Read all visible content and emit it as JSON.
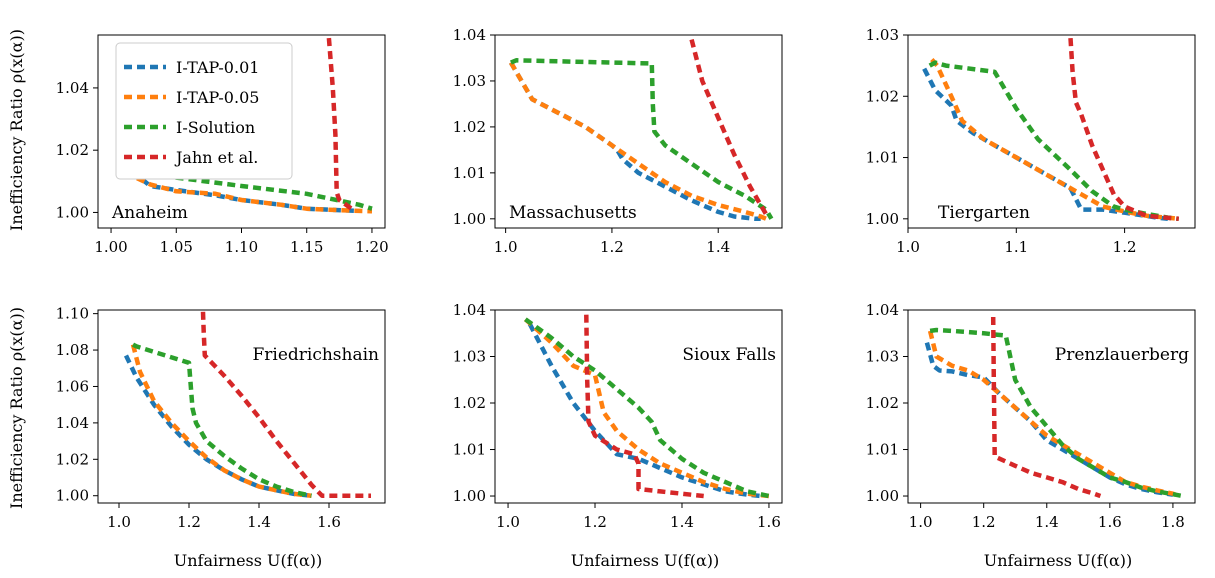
{
  "series_names": [
    "I-TAP-0.01",
    "I-TAP-0.05",
    "I-Solution",
    "Jahn et al."
  ],
  "colors": {
    "I-TAP-0.01": "#1f77b4",
    "I-TAP-0.05": "#ff7f0e",
    "I-Solution": "#2ca02c",
    "Jahn et al.": "#d62728"
  },
  "xlabel": "Unfairness U(f(α))",
  "ylabel": "Inefficiency Ratio ρ(x(α))",
  "chart_data": [
    {
      "type": "line",
      "title": "Anaheim",
      "title_pos": "bottom-left",
      "legend": "upper-left",
      "xlim": [
        0.99,
        1.21
      ],
      "ylim": [
        0.995,
        1.057
      ],
      "xticks": [
        1.0,
        1.05,
        1.1,
        1.15,
        1.2
      ],
      "xtick_labels": [
        "1.00",
        "1.05",
        "1.10",
        "1.15",
        "1.20"
      ],
      "yticks": [
        1.0,
        1.02,
        1.04
      ],
      "ytick_labels": [
        "1.00",
        "1.02",
        "1.04"
      ],
      "series": [
        {
          "name": "I-TAP-0.01",
          "x": [
            1.005,
            1.02,
            1.03,
            1.05,
            1.08,
            1.1,
            1.13,
            1.15,
            1.17,
            1.19
          ],
          "y": [
            1.0125,
            1.012,
            1.0085,
            1.0072,
            1.0055,
            1.004,
            1.0025,
            1.0012,
            1.0008,
            1.0005
          ]
        },
        {
          "name": "I-TAP-0.05",
          "x": [
            1.02,
            1.03,
            1.05,
            1.08,
            1.1,
            1.13,
            1.15,
            1.17,
            1.19,
            1.2
          ],
          "y": [
            1.011,
            1.009,
            1.0068,
            1.006,
            1.004,
            1.0025,
            1.0012,
            1.0008,
            1.0005,
            1.0004
          ]
        },
        {
          "name": "I-Solution",
          "x": [
            1.02,
            1.03,
            1.05,
            1.1,
            1.15,
            1.19,
            1.2
          ],
          "y": [
            1.012,
            1.0125,
            1.0112,
            1.0085,
            1.006,
            1.0025,
            1.0012
          ]
        },
        {
          "name": "Jahn et al.",
          "x": [
            1.167,
            1.17,
            1.172,
            1.173,
            1.175,
            1.185
          ],
          "y": [
            1.056,
            1.04,
            1.025,
            1.0065,
            1.004,
            1.001
          ]
        }
      ]
    },
    {
      "type": "line",
      "title": "Massachusetts",
      "title_pos": "bottom-left",
      "xlim": [
        0.98,
        1.52
      ],
      "ylim": [
        0.998,
        1.04
      ],
      "xticks": [
        1.0,
        1.2,
        1.4
      ],
      "xtick_labels": [
        "1.0",
        "1.2",
        "1.4"
      ],
      "yticks": [
        1.0,
        1.01,
        1.02,
        1.03,
        1.04
      ],
      "ytick_labels": [
        "1.00",
        "1.01",
        "1.02",
        "1.03",
        "1.04"
      ],
      "series": [
        {
          "name": "I-TAP-0.01",
          "x": [
            1.01,
            1.05,
            1.1,
            1.15,
            1.2,
            1.21,
            1.22,
            1.25,
            1.3,
            1.35,
            1.4,
            1.43,
            1.47,
            1.48
          ],
          "y": [
            1.034,
            1.026,
            1.023,
            1.02,
            1.016,
            1.015,
            1.013,
            1.01,
            1.007,
            1.004,
            1.0015,
            1.0005,
            1.0,
            1.0
          ]
        },
        {
          "name": "I-TAP-0.05",
          "x": [
            1.01,
            1.05,
            1.1,
            1.15,
            1.2,
            1.25,
            1.3,
            1.35,
            1.4,
            1.45,
            1.48,
            1.49
          ],
          "y": [
            1.034,
            1.026,
            1.023,
            1.02,
            1.016,
            1.012,
            1.008,
            1.005,
            1.003,
            1.0015,
            1.0005,
            1.0
          ]
        },
        {
          "name": "I-Solution",
          "x": [
            1.01,
            1.02,
            1.275,
            1.277,
            1.28,
            1.3,
            1.35,
            1.4,
            1.45,
            1.49,
            1.5
          ],
          "y": [
            1.034,
            1.0345,
            1.0338,
            1.025,
            1.019,
            1.016,
            1.012,
            1.008,
            1.005,
            1.002,
            1.0
          ]
        },
        {
          "name": "Jahn et al.",
          "x": [
            1.35,
            1.37,
            1.4,
            1.43,
            1.46,
            1.48,
            1.49
          ],
          "y": [
            1.039,
            1.03,
            1.022,
            1.014,
            1.007,
            1.003,
            1.001
          ]
        }
      ]
    },
    {
      "type": "line",
      "title": "Tiergarten",
      "title_pos": "bottom-left",
      "xlim": [
        1.0,
        1.265
      ],
      "ylim": [
        0.9985,
        1.03
      ],
      "xticks": [
        1.0,
        1.1,
        1.2
      ],
      "xtick_labels": [
        "1.0",
        "1.1",
        "1.2"
      ],
      "yticks": [
        1.0,
        1.01,
        1.02,
        1.03
      ],
      "ytick_labels": [
        "1.00",
        "1.01",
        "1.02",
        "1.03"
      ],
      "series": [
        {
          "name": "I-TAP-0.01",
          "x": [
            1.015,
            1.025,
            1.04,
            1.045,
            1.06,
            1.08,
            1.1,
            1.12,
            1.14,
            1.15,
            1.16,
            1.18,
            1.2,
            1.23,
            1.24
          ],
          "y": [
            1.0245,
            1.021,
            1.0185,
            1.016,
            1.014,
            1.012,
            1.01,
            1.008,
            1.006,
            1.005,
            1.0015,
            1.0015,
            1.001,
            1.0002,
            1.0
          ]
        },
        {
          "name": "I-TAP-0.05",
          "x": [
            1.022,
            1.027,
            1.04,
            1.05,
            1.07,
            1.1,
            1.13,
            1.16,
            1.18,
            1.2,
            1.22,
            1.25
          ],
          "y": [
            1.026,
            1.025,
            1.02,
            1.016,
            1.013,
            1.01,
            1.007,
            1.004,
            1.002,
            1.0012,
            1.0005,
            1.0
          ]
        },
        {
          "name": "I-Solution",
          "x": [
            1.02,
            1.025,
            1.035,
            1.08,
            1.1,
            1.12,
            1.15,
            1.17,
            1.19,
            1.2,
            1.22,
            1.24,
            1.25
          ],
          "y": [
            1.025,
            1.0255,
            1.025,
            1.024,
            1.018,
            1.013,
            1.008,
            1.0045,
            1.002,
            1.0015,
            1.0008,
            1.0002,
            1.0
          ]
        },
        {
          "name": "Jahn et al.",
          "x": [
            1.15,
            1.152,
            1.155,
            1.16,
            1.17,
            1.18,
            1.19,
            1.2,
            1.22,
            1.25
          ],
          "y": [
            1.0295,
            1.024,
            1.019,
            1.017,
            1.012,
            1.008,
            1.004,
            1.002,
            1.0005,
            1.0
          ]
        }
      ]
    },
    {
      "type": "line",
      "title": "Friedrichshain",
      "title_pos": "top-right",
      "xlim": [
        0.94,
        1.76
      ],
      "ylim": [
        0.996,
        1.102
      ],
      "xticks": [
        1.0,
        1.2,
        1.4,
        1.6
      ],
      "xtick_labels": [
        "1.0",
        "1.2",
        "1.4",
        "1.6"
      ],
      "yticks": [
        1.0,
        1.02,
        1.04,
        1.06,
        1.08,
        1.1
      ],
      "ytick_labels": [
        "1.00",
        "1.02",
        "1.04",
        "1.06",
        "1.08",
        "1.10"
      ],
      "series": [
        {
          "name": "I-TAP-0.01",
          "x": [
            1.02,
            1.05,
            1.1,
            1.15,
            1.2,
            1.25,
            1.3,
            1.35,
            1.4,
            1.45,
            1.5,
            1.55
          ],
          "y": [
            1.077,
            1.065,
            1.05,
            1.038,
            1.028,
            1.02,
            1.014,
            1.009,
            1.005,
            1.003,
            1.001,
            1.0
          ]
        },
        {
          "name": "I-TAP-0.05",
          "x": [
            1.04,
            1.06,
            1.1,
            1.15,
            1.2,
            1.25,
            1.3,
            1.35,
            1.4,
            1.45,
            1.5,
            1.55
          ],
          "y": [
            1.083,
            1.068,
            1.052,
            1.04,
            1.03,
            1.021,
            1.014,
            1.009,
            1.005,
            1.003,
            1.001,
            1.0
          ]
        },
        {
          "name": "I-Solution",
          "x": [
            1.04,
            1.05,
            1.2,
            1.21,
            1.22,
            1.25,
            1.3,
            1.35,
            1.4,
            1.45,
            1.5,
            1.55
          ],
          "y": [
            1.083,
            1.082,
            1.073,
            1.048,
            1.04,
            1.03,
            1.022,
            1.015,
            1.009,
            1.005,
            1.002,
            1.0
          ]
        },
        {
          "name": "Jahn et al.",
          "x": [
            1.24,
            1.242,
            1.245,
            1.3,
            1.35,
            1.4,
            1.45,
            1.5,
            1.55,
            1.58,
            1.65,
            1.72
          ],
          "y": [
            1.101,
            1.09,
            1.077,
            1.066,
            1.055,
            1.043,
            1.03,
            1.018,
            1.006,
            1.0,
            1.0,
            1.0
          ]
        }
      ]
    },
    {
      "type": "line",
      "title": "Sioux Falls",
      "title_pos": "top-right",
      "xlim": [
        0.97,
        1.63
      ],
      "ylim": [
        0.9985,
        1.04
      ],
      "xticks": [
        1.0,
        1.2,
        1.4,
        1.6
      ],
      "xtick_labels": [
        "1.0",
        "1.2",
        "1.4",
        "1.6"
      ],
      "yticks": [
        1.0,
        1.01,
        1.02,
        1.03,
        1.04
      ],
      "ytick_labels": [
        "1.00",
        "1.01",
        "1.02",
        "1.03",
        "1.04"
      ],
      "series": [
        {
          "name": "I-TAP-0.01",
          "x": [
            1.05,
            1.1,
            1.15,
            1.2,
            1.25,
            1.3,
            1.35,
            1.4,
            1.45,
            1.5,
            1.55,
            1.58
          ],
          "y": [
            1.037,
            1.028,
            1.02,
            1.014,
            1.009,
            1.008,
            1.006,
            1.004,
            1.0025,
            1.001,
            1.0003,
            1.0
          ]
        },
        {
          "name": "I-TAP-0.05",
          "x": [
            1.04,
            1.1,
            1.15,
            1.2,
            1.22,
            1.25,
            1.3,
            1.35,
            1.4,
            1.45,
            1.5,
            1.55,
            1.6
          ],
          "y": [
            1.038,
            1.033,
            1.028,
            1.026,
            1.018,
            1.014,
            1.01,
            1.007,
            1.005,
            1.003,
            1.0015,
            1.0005,
            1.0
          ]
        },
        {
          "name": "I-Solution",
          "x": [
            1.04,
            1.1,
            1.15,
            1.2,
            1.25,
            1.3,
            1.33,
            1.35,
            1.4,
            1.45,
            1.5,
            1.55,
            1.6
          ],
          "y": [
            1.038,
            1.034,
            1.03,
            1.027,
            1.023,
            1.019,
            1.016,
            1.012,
            1.008,
            1.005,
            1.003,
            1.001,
            1.0
          ]
        },
        {
          "name": "Jahn et al.",
          "x": [
            1.18,
            1.182,
            1.185,
            1.2,
            1.25,
            1.29,
            1.3,
            1.3,
            1.35,
            1.4,
            1.45
          ],
          "y": [
            1.039,
            1.025,
            1.016,
            1.013,
            1.01,
            1.009,
            1.007,
            1.0015,
            1.001,
            1.0005,
            1.0
          ]
        }
      ]
    },
    {
      "type": "line",
      "title": "Prenzlauerberg",
      "title_pos": "top-right",
      "xlim": [
        0.96,
        1.87
      ],
      "ylim": [
        0.9985,
        1.04
      ],
      "xticks": [
        1.0,
        1.2,
        1.4,
        1.6,
        1.8
      ],
      "xtick_labels": [
        "1.0",
        "1.2",
        "1.4",
        "1.6",
        "1.8"
      ],
      "yticks": [
        1.0,
        1.01,
        1.02,
        1.03,
        1.04
      ],
      "ytick_labels": [
        "1.00",
        "1.01",
        "1.02",
        "1.03",
        "1.04"
      ],
      "series": [
        {
          "name": "I-TAP-0.01",
          "x": [
            1.02,
            1.04,
            1.06,
            1.1,
            1.15,
            1.2,
            1.25,
            1.3,
            1.35,
            1.4,
            1.45,
            1.5,
            1.55,
            1.6,
            1.65,
            1.7,
            1.75,
            1.8
          ],
          "y": [
            1.033,
            1.028,
            1.027,
            1.0268,
            1.026,
            1.0255,
            1.022,
            1.019,
            1.016,
            1.012,
            1.01,
            1.008,
            1.006,
            1.004,
            1.0025,
            1.0015,
            1.0008,
            1.0003
          ]
        },
        {
          "name": "I-TAP-0.05",
          "x": [
            1.03,
            1.05,
            1.1,
            1.15,
            1.2,
            1.25,
            1.3,
            1.35,
            1.4,
            1.45,
            1.5,
            1.55,
            1.6,
            1.65,
            1.7,
            1.75,
            1.8,
            1.82
          ],
          "y": [
            1.0355,
            1.03,
            1.028,
            1.027,
            1.025,
            1.022,
            1.019,
            1.016,
            1.013,
            1.011,
            1.009,
            1.007,
            1.005,
            1.003,
            1.002,
            1.0012,
            1.0005,
            1.0
          ]
        },
        {
          "name": "I-Solution",
          "x": [
            1.03,
            1.05,
            1.1,
            1.2,
            1.27,
            1.3,
            1.35,
            1.4,
            1.45,
            1.5,
            1.55,
            1.6,
            1.65,
            1.7,
            1.75,
            1.8,
            1.83
          ],
          "y": [
            1.0355,
            1.0357,
            1.0355,
            1.035,
            1.0345,
            1.025,
            1.019,
            1.015,
            1.011,
            1.008,
            1.006,
            1.004,
            1.003,
            1.0018,
            1.001,
            1.0004,
            1.0
          ]
        },
        {
          "name": "Jahn et al.",
          "x": [
            1.23,
            1.232,
            1.235,
            1.3,
            1.35,
            1.4,
            1.45,
            1.5,
            1.55,
            1.57
          ],
          "y": [
            1.0385,
            1.025,
            1.0085,
            1.0065,
            1.005,
            1.004,
            1.003,
            1.0015,
            1.0005,
            1.0
          ]
        }
      ]
    }
  ]
}
